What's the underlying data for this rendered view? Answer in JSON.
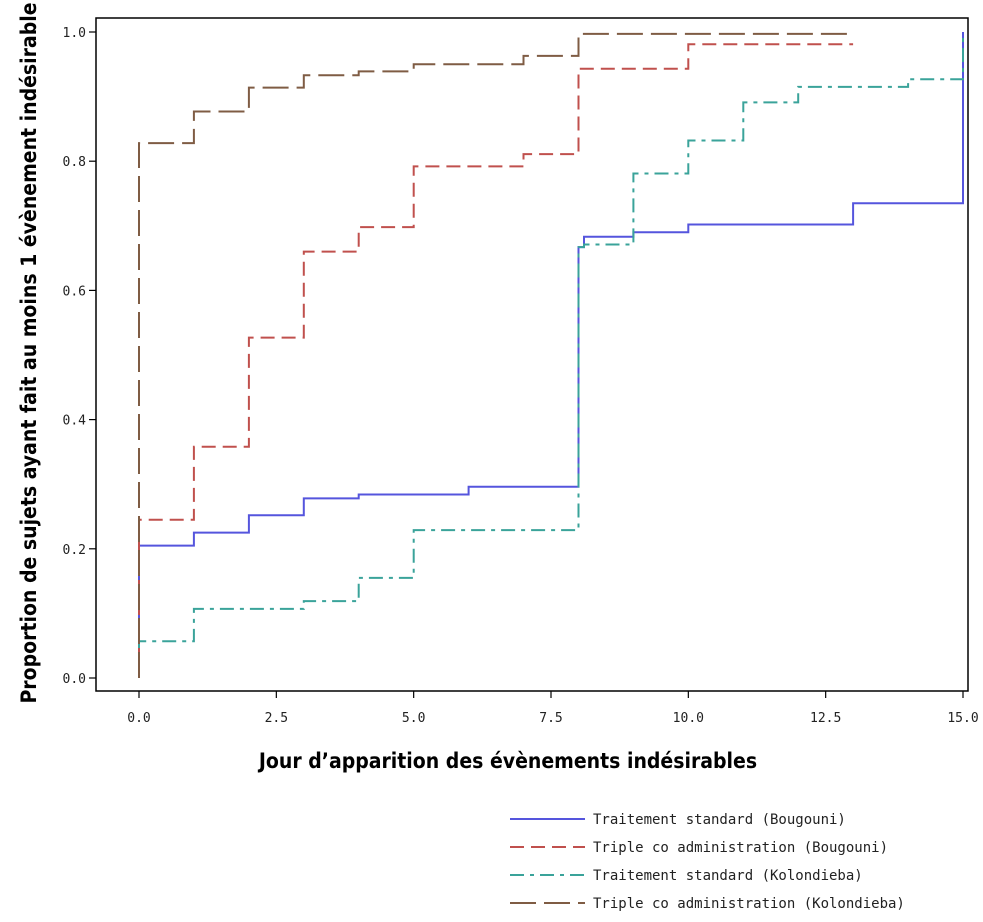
{
  "chart_data": {
    "type": "line",
    "step": true,
    "xlabel": "Jour d’apparition des évènements indésirables",
    "ylabel": "Proportion de sujets ayant fait au moins 1 évènement indésirable",
    "xlim": [
      0,
      15
    ],
    "ylim": [
      0,
      1
    ],
    "x_ticks": [
      "0.0",
      "2.5",
      "5.0",
      "7.5",
      "10.0",
      "12.5",
      "15.0"
    ],
    "y_ticks": [
      "0.0",
      "0.2",
      "0.4",
      "0.6",
      "0.8",
      "1.0"
    ],
    "grid": false,
    "legend_position": "bottom-right",
    "series": [
      {
        "name": "Traitement standard (Bougouni)",
        "color": "#5555dd",
        "dash": "solid",
        "points": [
          [
            0,
            0.0
          ],
          [
            0,
            0.205
          ],
          [
            1,
            0.225
          ],
          [
            2,
            0.252
          ],
          [
            3,
            0.278
          ],
          [
            4,
            0.284
          ],
          [
            6,
            0.296
          ],
          [
            8,
            0.667
          ],
          [
            8.1,
            0.683
          ],
          [
            9,
            0.69
          ],
          [
            10,
            0.702
          ],
          [
            13,
            0.735
          ],
          [
            15,
            1.0
          ]
        ]
      },
      {
        "name": "Triple co administration (Bougouni)",
        "color": "#c0504d",
        "dash": "dash",
        "points": [
          [
            0,
            0.0
          ],
          [
            0,
            0.245
          ],
          [
            1,
            0.358
          ],
          [
            2,
            0.527
          ],
          [
            3,
            0.66
          ],
          [
            4,
            0.698
          ],
          [
            5,
            0.792
          ],
          [
            7,
            0.811
          ],
          [
            8,
            0.943
          ],
          [
            10,
            0.981
          ],
          [
            13,
            0.981
          ]
        ]
      },
      {
        "name": "Traitement standard (Kolondieba)",
        "color": "#3aa39a",
        "dash": "dashdot",
        "points": [
          [
            0,
            0.0
          ],
          [
            0,
            0.057
          ],
          [
            1,
            0.107
          ],
          [
            3,
            0.119
          ],
          [
            4,
            0.155
          ],
          [
            5,
            0.229
          ],
          [
            8,
            0.667
          ],
          [
            8.1,
            0.671
          ],
          [
            9,
            0.781
          ],
          [
            10,
            0.832
          ],
          [
            11,
            0.891
          ],
          [
            12,
            0.915
          ],
          [
            14,
            0.927
          ],
          [
            15,
            1.0
          ]
        ]
      },
      {
        "name": "Triple co administration (Kolondieba)",
        "color": "#7f5c44",
        "dash": "longdash",
        "points": [
          [
            0,
            0.0
          ],
          [
            0,
            0.828
          ],
          [
            1,
            0.877
          ],
          [
            2,
            0.914
          ],
          [
            3,
            0.933
          ],
          [
            4,
            0.939
          ],
          [
            5,
            0.95
          ],
          [
            7,
            0.963
          ],
          [
            8,
            0.997
          ],
          [
            13,
            0.997
          ]
        ]
      }
    ]
  }
}
